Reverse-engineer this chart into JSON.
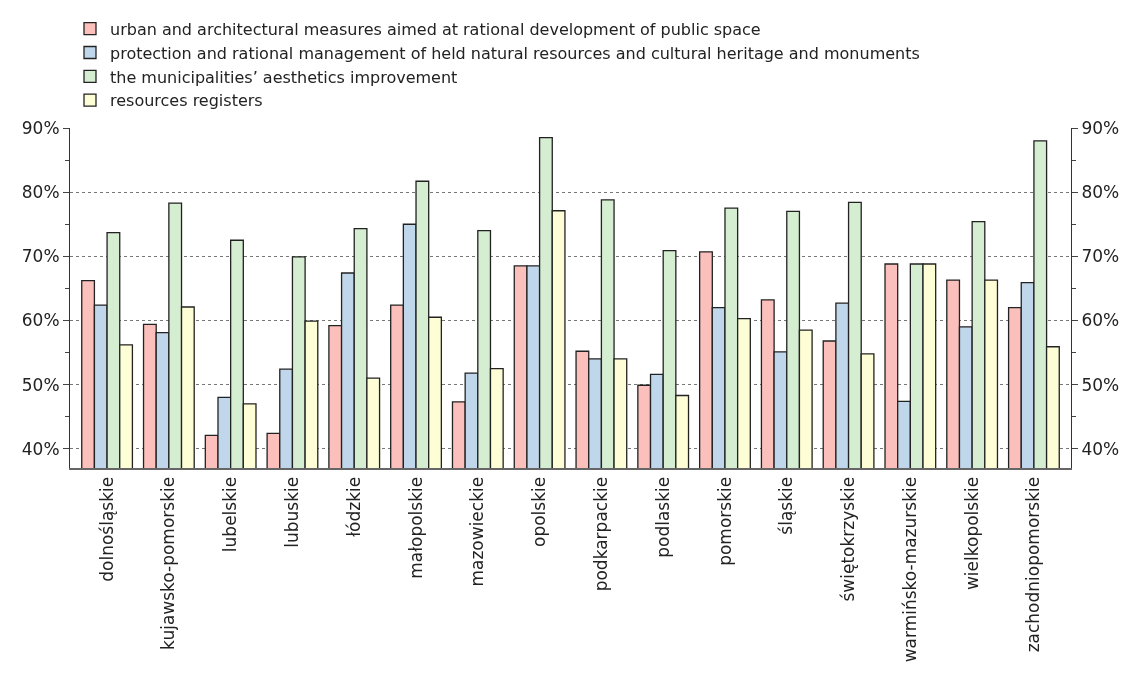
{
  "chart_data": {
    "type": "bar",
    "categories": [
      "dolnośląskie",
      "kujawsko-pomorskie",
      "lubelskie",
      "lubuskie",
      "łódzkie",
      "małopolskie",
      "mazowieckie",
      "opolskie",
      "podkarpackie",
      "podlaskie",
      "pomorskie",
      "śląskie",
      "świętokrzyskie",
      "warmińsko-mazurskie",
      "wielkopolskie",
      "zachodniopomorskie"
    ],
    "series": [
      {
        "name": "urban and architectural measures aimed at rational development of public space",
        "color": "#fbc0bb",
        "values": [
          66.2,
          59.4,
          42.1,
          42.4,
          59.2,
          62.4,
          47.3,
          68.5,
          55.2,
          49.9,
          70.7,
          63.2,
          56.8,
          68.8,
          66.3,
          62.0
        ]
      },
      {
        "name": "protection and rational management of held natural resources and cultural heritage and monuments",
        "color": "#c0d6ea",
        "values": [
          62.4,
          58.1,
          48.0,
          52.4,
          67.4,
          75.0,
          51.8,
          68.5,
          54.0,
          51.6,
          62.0,
          55.1,
          62.7,
          47.4,
          59.0,
          65.9
        ]
      },
      {
        "name": "the municipalities’ aesthetics improvement",
        "color": "#d5edd1",
        "values": [
          73.7,
          78.3,
          72.5,
          69.9,
          74.3,
          81.7,
          74.0,
          88.5,
          78.8,
          70.9,
          77.5,
          77.0,
          78.4,
          68.8,
          75.4,
          88.0
        ]
      },
      {
        "name": "resources registers",
        "color": "#fefed6",
        "values": [
          56.2,
          62.1,
          47.0,
          59.9,
          51.0,
          60.5,
          52.5,
          77.1,
          54.0,
          48.3,
          60.3,
          58.5,
          54.8,
          68.8,
          66.3,
          55.9
        ]
      }
    ],
    "ylim": [
      37,
      90
    ],
    "yticks": [
      {
        "value": 40,
        "label": "40%"
      },
      {
        "value": 45,
        "label": null
      },
      {
        "value": 50,
        "label": "50%"
      },
      {
        "value": 55,
        "label": null
      },
      {
        "value": 60,
        "label": "60%"
      },
      {
        "value": 65,
        "label": null
      },
      {
        "value": 70,
        "label": "70%"
      },
      {
        "value": 75,
        "label": null
      },
      {
        "value": 80,
        "label": "80%"
      },
      {
        "value": 85,
        "label": null
      },
      {
        "value": 90,
        "label": "90%"
      }
    ],
    "y2lim": [
      37,
      90
    ],
    "y2ticks": [
      {
        "value": 40,
        "label": "40%"
      },
      {
        "value": 45,
        "label": null
      },
      {
        "value": 50,
        "label": "50%"
      },
      {
        "value": 55,
        "label": null
      },
      {
        "value": 60,
        "label": "60%"
      },
      {
        "value": 65,
        "label": null
      },
      {
        "value": 70,
        "label": "70%"
      },
      {
        "value": 75,
        "label": null
      },
      {
        "value": 80,
        "label": "80%"
      },
      {
        "value": 85,
        "label": null
      },
      {
        "value": 90,
        "label": "90%"
      }
    ],
    "grid": "y",
    "legend": "top left"
  }
}
